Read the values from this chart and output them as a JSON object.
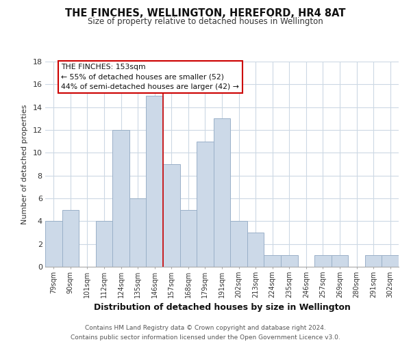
{
  "title": "THE FINCHES, WELLINGTON, HEREFORD, HR4 8AT",
  "subtitle": "Size of property relative to detached houses in Wellington",
  "xlabel": "Distribution of detached houses by size in Wellington",
  "ylabel": "Number of detached properties",
  "bar_color": "#ccd9e8",
  "bar_edgecolor": "#9ab0c8",
  "categories": [
    "79sqm",
    "90sqm",
    "101sqm",
    "112sqm",
    "124sqm",
    "135sqm",
    "146sqm",
    "157sqm",
    "168sqm",
    "179sqm",
    "191sqm",
    "202sqm",
    "213sqm",
    "224sqm",
    "235sqm",
    "246sqm",
    "257sqm",
    "269sqm",
    "280sqm",
    "291sqm",
    "302sqm"
  ],
  "values": [
    4,
    5,
    0,
    4,
    12,
    6,
    15,
    9,
    5,
    11,
    13,
    4,
    3,
    1,
    1,
    0,
    1,
    1,
    0,
    1,
    1
  ],
  "ylim": [
    0,
    18
  ],
  "yticks": [
    0,
    2,
    4,
    6,
    8,
    10,
    12,
    14,
    16,
    18
  ],
  "vline_x": 6.5,
  "vline_color": "#cc0000",
  "annotation_title": "THE FINCHES: 153sqm",
  "annotation_line1": "← 55% of detached houses are smaller (52)",
  "annotation_line2": "44% of semi-detached houses are larger (42) →",
  "annotation_box_color": "#ffffff",
  "annotation_box_edgecolor": "#cc0000",
  "footer_line1": "Contains HM Land Registry data © Crown copyright and database right 2024.",
  "footer_line2": "Contains public sector information licensed under the Open Government Licence v3.0.",
  "background_color": "#ffffff",
  "grid_color": "#ccd8e4",
  "title_fontsize": 10.5,
  "subtitle_fontsize": 8.5
}
